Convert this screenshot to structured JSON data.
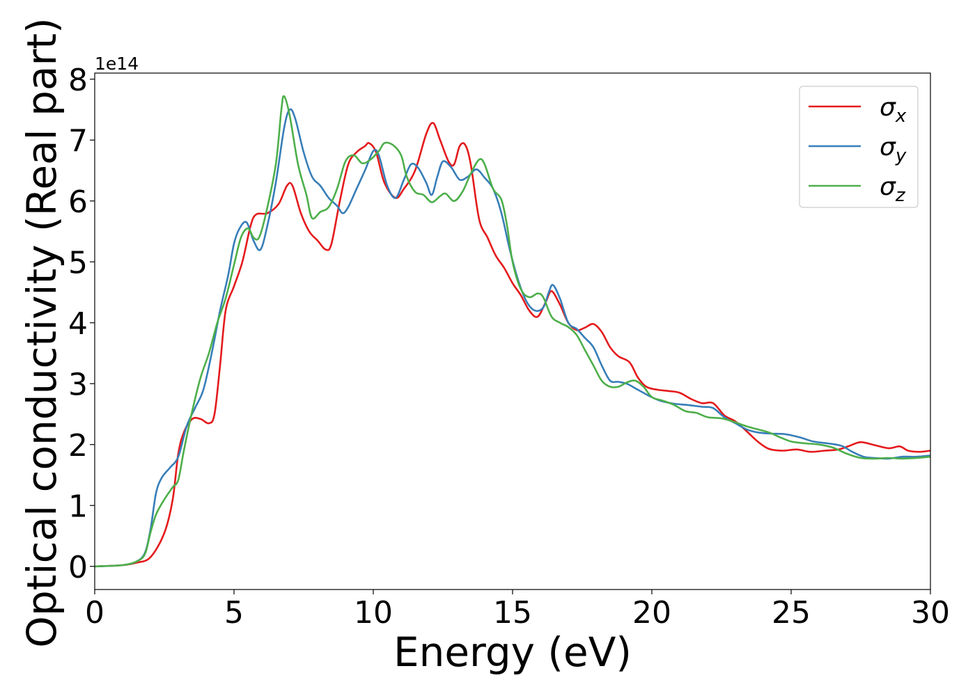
{
  "chart_data": {
    "type": "line",
    "title": "",
    "xlabel": "Energy (eV)",
    "ylabel": "Optical conductivity (Real part)",
    "y_scale_label": "1e14",
    "y_multiplier": 100000000000000.0,
    "xlim": [
      0,
      30
    ],
    "ylim": [
      -0.38,
      8.1
    ],
    "x_ticks": [
      0,
      5,
      10,
      15,
      20,
      25,
      30
    ],
    "x_tick_labels": [
      "0",
      "5",
      "10",
      "15",
      "20",
      "25",
      "30"
    ],
    "y_ticks": [
      0,
      1,
      2,
      3,
      4,
      5,
      6,
      7,
      8
    ],
    "y_tick_labels": [
      "0",
      "1",
      "2",
      "3",
      "4",
      "5",
      "6",
      "7",
      "8"
    ],
    "grid": false,
    "legend_position": "top-right",
    "series": [
      {
        "name": "σ_x",
        "legend": {
          "base": "σ",
          "sub": "x"
        },
        "color": "#e41a1c",
        "points": [
          [
            0,
            0
          ],
          [
            1,
            0.02
          ],
          [
            1.5,
            0.06
          ],
          [
            2,
            0.15
          ],
          [
            2.5,
            0.55
          ],
          [
            2.8,
            1.1
          ],
          [
            3,
            1.85
          ],
          [
            3.2,
            2.2
          ],
          [
            3.5,
            2.42
          ],
          [
            3.8,
            2.42
          ],
          [
            4.1,
            2.35
          ],
          [
            4.3,
            2.5
          ],
          [
            4.5,
            3.3
          ],
          [
            4.7,
            4.2
          ],
          [
            5,
            4.6
          ],
          [
            5.3,
            5.0
          ],
          [
            5.6,
            5.6
          ],
          [
            5.8,
            5.78
          ],
          [
            6.2,
            5.8
          ],
          [
            6.6,
            5.95
          ],
          [
            6.9,
            6.25
          ],
          [
            7.1,
            6.25
          ],
          [
            7.4,
            5.8
          ],
          [
            7.7,
            5.5
          ],
          [
            8.0,
            5.35
          ],
          [
            8.3,
            5.2
          ],
          [
            8.5,
            5.3
          ],
          [
            8.8,
            6.0
          ],
          [
            9.1,
            6.6
          ],
          [
            9.4,
            6.8
          ],
          [
            9.7,
            6.9
          ],
          [
            9.85,
            6.95
          ],
          [
            10.1,
            6.8
          ],
          [
            10.4,
            6.3
          ],
          [
            10.8,
            6.05
          ],
          [
            11.1,
            6.2
          ],
          [
            11.5,
            6.5
          ],
          [
            11.9,
            7.1
          ],
          [
            12.15,
            7.28
          ],
          [
            12.4,
            7.0
          ],
          [
            12.7,
            6.65
          ],
          [
            12.9,
            6.6
          ],
          [
            13.1,
            6.9
          ],
          [
            13.3,
            6.92
          ],
          [
            13.5,
            6.6
          ],
          [
            13.8,
            5.7
          ],
          [
            14.1,
            5.4
          ],
          [
            14.4,
            5.1
          ],
          [
            14.7,
            4.9
          ],
          [
            15.0,
            4.65
          ],
          [
            15.3,
            4.45
          ],
          [
            15.6,
            4.2
          ],
          [
            15.9,
            4.1
          ],
          [
            16.2,
            4.35
          ],
          [
            16.4,
            4.52
          ],
          [
            16.7,
            4.3
          ],
          [
            17.0,
            4.0
          ],
          [
            17.3,
            3.88
          ],
          [
            17.6,
            3.92
          ],
          [
            17.9,
            3.98
          ],
          [
            18.2,
            3.85
          ],
          [
            18.5,
            3.6
          ],
          [
            18.8,
            3.45
          ],
          [
            19.2,
            3.35
          ],
          [
            19.5,
            3.1
          ],
          [
            19.8,
            2.95
          ],
          [
            20.2,
            2.9
          ],
          [
            20.6,
            2.88
          ],
          [
            21.0,
            2.85
          ],
          [
            21.4,
            2.75
          ],
          [
            21.8,
            2.68
          ],
          [
            22.2,
            2.68
          ],
          [
            22.6,
            2.48
          ],
          [
            23.0,
            2.38
          ],
          [
            23.4,
            2.22
          ],
          [
            23.8,
            2.05
          ],
          [
            24.2,
            1.93
          ],
          [
            24.7,
            1.9
          ],
          [
            25.2,
            1.92
          ],
          [
            25.7,
            1.88
          ],
          [
            26.2,
            1.9
          ],
          [
            26.7,
            1.92
          ],
          [
            27.1,
            1.98
          ],
          [
            27.5,
            2.04
          ],
          [
            28.0,
            1.99
          ],
          [
            28.5,
            1.94
          ],
          [
            28.9,
            1.97
          ],
          [
            29.2,
            1.9
          ],
          [
            29.6,
            1.88
          ],
          [
            30,
            1.9
          ]
        ]
      },
      {
        "name": "σ_y",
        "legend": {
          "base": "σ",
          "sub": "y"
        },
        "color": "#377eb8",
        "points": [
          [
            0,
            0
          ],
          [
            1,
            0.02
          ],
          [
            1.5,
            0.08
          ],
          [
            1.8,
            0.22
          ],
          [
            2.0,
            0.6
          ],
          [
            2.2,
            1.2
          ],
          [
            2.4,
            1.45
          ],
          [
            2.7,
            1.62
          ],
          [
            3.0,
            1.8
          ],
          [
            3.3,
            2.3
          ],
          [
            3.6,
            2.6
          ],
          [
            3.9,
            2.9
          ],
          [
            4.2,
            3.5
          ],
          [
            4.5,
            4.2
          ],
          [
            4.8,
            4.8
          ],
          [
            5.0,
            5.3
          ],
          [
            5.2,
            5.55
          ],
          [
            5.45,
            5.65
          ],
          [
            5.7,
            5.35
          ],
          [
            5.95,
            5.2
          ],
          [
            6.2,
            5.6
          ],
          [
            6.5,
            6.3
          ],
          [
            6.8,
            7.2
          ],
          [
            7.0,
            7.5
          ],
          [
            7.2,
            7.35
          ],
          [
            7.5,
            6.8
          ],
          [
            7.8,
            6.4
          ],
          [
            8.1,
            6.25
          ],
          [
            8.4,
            6.05
          ],
          [
            8.7,
            5.92
          ],
          [
            8.9,
            5.8
          ],
          [
            9.1,
            5.9
          ],
          [
            9.4,
            6.2
          ],
          [
            9.7,
            6.5
          ],
          [
            10.0,
            6.82
          ],
          [
            10.2,
            6.75
          ],
          [
            10.5,
            6.25
          ],
          [
            10.8,
            6.05
          ],
          [
            11.1,
            6.35
          ],
          [
            11.35,
            6.6
          ],
          [
            11.6,
            6.55
          ],
          [
            11.9,
            6.3
          ],
          [
            12.1,
            6.1
          ],
          [
            12.3,
            6.4
          ],
          [
            12.5,
            6.65
          ],
          [
            12.8,
            6.55
          ],
          [
            13.1,
            6.35
          ],
          [
            13.4,
            6.4
          ],
          [
            13.7,
            6.52
          ],
          [
            14.0,
            6.38
          ],
          [
            14.3,
            6.2
          ],
          [
            14.6,
            5.8
          ],
          [
            14.9,
            5.2
          ],
          [
            15.2,
            4.7
          ],
          [
            15.5,
            4.35
          ],
          [
            15.8,
            4.2
          ],
          [
            16.1,
            4.25
          ],
          [
            16.3,
            4.5
          ],
          [
            16.45,
            4.62
          ],
          [
            16.7,
            4.4
          ],
          [
            17.0,
            4.0
          ],
          [
            17.3,
            3.9
          ],
          [
            17.6,
            3.75
          ],
          [
            17.9,
            3.6
          ],
          [
            18.2,
            3.3
          ],
          [
            18.5,
            3.05
          ],
          [
            18.8,
            3.03
          ],
          [
            19.1,
            3.0
          ],
          [
            19.5,
            2.9
          ],
          [
            19.9,
            2.8
          ],
          [
            20.3,
            2.72
          ],
          [
            20.8,
            2.67
          ],
          [
            21.3,
            2.65
          ],
          [
            21.8,
            2.62
          ],
          [
            22.2,
            2.6
          ],
          [
            22.6,
            2.45
          ],
          [
            23.0,
            2.35
          ],
          [
            23.4,
            2.25
          ],
          [
            23.8,
            2.2
          ],
          [
            24.3,
            2.18
          ],
          [
            24.8,
            2.17
          ],
          [
            25.3,
            2.12
          ],
          [
            25.8,
            2.05
          ],
          [
            26.3,
            2.02
          ],
          [
            26.8,
            1.98
          ],
          [
            27.2,
            1.88
          ],
          [
            27.6,
            1.8
          ],
          [
            28.0,
            1.78
          ],
          [
            28.5,
            1.77
          ],
          [
            29.0,
            1.8
          ],
          [
            29.5,
            1.8
          ],
          [
            30,
            1.82
          ]
        ]
      },
      {
        "name": "σ_z",
        "legend": {
          "base": "σ",
          "sub": "z"
        },
        "color": "#4daf4a",
        "points": [
          [
            0,
            0
          ],
          [
            1,
            0.02
          ],
          [
            1.5,
            0.08
          ],
          [
            1.8,
            0.2
          ],
          [
            2.0,
            0.55
          ],
          [
            2.2,
            0.85
          ],
          [
            2.5,
            1.1
          ],
          [
            2.8,
            1.3
          ],
          [
            3.0,
            1.42
          ],
          [
            3.2,
            1.9
          ],
          [
            3.5,
            2.55
          ],
          [
            3.8,
            3.1
          ],
          [
            4.1,
            3.5
          ],
          [
            4.4,
            4.0
          ],
          [
            4.7,
            4.4
          ],
          [
            5.0,
            4.95
          ],
          [
            5.25,
            5.4
          ],
          [
            5.5,
            5.55
          ],
          [
            5.7,
            5.4
          ],
          [
            5.9,
            5.4
          ],
          [
            6.15,
            5.8
          ],
          [
            6.5,
            6.6
          ],
          [
            6.7,
            7.5
          ],
          [
            6.8,
            7.72
          ],
          [
            7.0,
            7.4
          ],
          [
            7.3,
            6.6
          ],
          [
            7.6,
            6.1
          ],
          [
            7.8,
            5.72
          ],
          [
            8.1,
            5.82
          ],
          [
            8.4,
            5.9
          ],
          [
            8.7,
            6.2
          ],
          [
            9.0,
            6.65
          ],
          [
            9.3,
            6.75
          ],
          [
            9.6,
            6.62
          ],
          [
            9.9,
            6.68
          ],
          [
            10.2,
            6.82
          ],
          [
            10.4,
            6.95
          ],
          [
            10.7,
            6.92
          ],
          [
            11.0,
            6.75
          ],
          [
            11.2,
            6.4
          ],
          [
            11.5,
            6.15
          ],
          [
            11.8,
            6.1
          ],
          [
            12.1,
            5.98
          ],
          [
            12.4,
            6.08
          ],
          [
            12.6,
            6.12
          ],
          [
            12.9,
            6.0
          ],
          [
            13.2,
            6.15
          ],
          [
            13.5,
            6.45
          ],
          [
            13.8,
            6.68
          ],
          [
            14.0,
            6.6
          ],
          [
            14.3,
            6.2
          ],
          [
            14.6,
            6.02
          ],
          [
            14.8,
            5.6
          ],
          [
            15.0,
            5.0
          ],
          [
            15.3,
            4.55
          ],
          [
            15.6,
            4.42
          ],
          [
            15.9,
            4.48
          ],
          [
            16.1,
            4.42
          ],
          [
            16.4,
            4.1
          ],
          [
            16.7,
            4.0
          ],
          [
            17.0,
            3.93
          ],
          [
            17.3,
            3.8
          ],
          [
            17.6,
            3.55
          ],
          [
            17.9,
            3.3
          ],
          [
            18.2,
            3.05
          ],
          [
            18.5,
            2.95
          ],
          [
            18.8,
            2.95
          ],
          [
            19.1,
            3.02
          ],
          [
            19.4,
            3.05
          ],
          [
            19.7,
            2.95
          ],
          [
            20.0,
            2.78
          ],
          [
            20.4,
            2.72
          ],
          [
            20.8,
            2.65
          ],
          [
            21.2,
            2.55
          ],
          [
            21.6,
            2.52
          ],
          [
            22.0,
            2.45
          ],
          [
            22.5,
            2.43
          ],
          [
            22.9,
            2.38
          ],
          [
            23.4,
            2.3
          ],
          [
            23.8,
            2.25
          ],
          [
            24.2,
            2.2
          ],
          [
            24.6,
            2.12
          ],
          [
            25.0,
            2.05
          ],
          [
            25.5,
            2.02
          ],
          [
            26.0,
            2.0
          ],
          [
            26.5,
            1.95
          ],
          [
            27.0,
            1.85
          ],
          [
            27.5,
            1.78
          ],
          [
            28.0,
            1.77
          ],
          [
            28.5,
            1.78
          ],
          [
            29.0,
            1.77
          ],
          [
            29.5,
            1.78
          ],
          [
            30,
            1.8
          ]
        ]
      }
    ]
  }
}
